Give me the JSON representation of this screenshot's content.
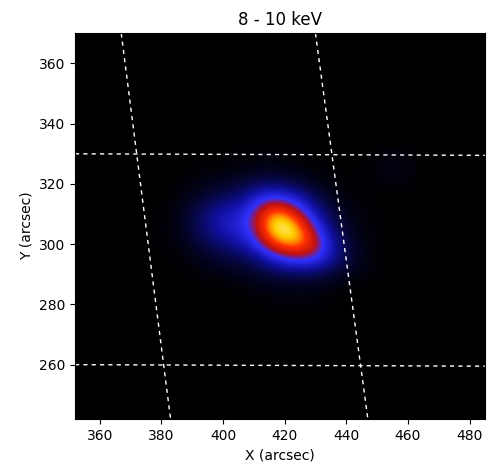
{
  "chart_data": {
    "type": "heatmap",
    "title": "8 - 10 keV",
    "x_label": "X (arcsec)",
    "y_label": "Y (arcsec)",
    "xlim": [
      352,
      485
    ],
    "ylim": [
      242,
      370
    ],
    "xticks": [
      360,
      380,
      400,
      420,
      440,
      460,
      480
    ],
    "yticks": [
      260,
      280,
      300,
      320,
      340,
      360
    ],
    "cell_x": [
      380,
      385,
      390,
      395,
      400,
      405,
      410,
      415,
      420,
      425,
      430,
      435,
      440,
      445,
      450,
      455,
      460
    ],
    "cell_y": [
      280,
      285,
      290,
      295,
      300,
      305,
      310,
      315,
      320,
      325,
      330
    ],
    "cells": [
      [
        0,
        0,
        0,
        0,
        0,
        0,
        0,
        0.01,
        0.01,
        0.01,
        0.01,
        0,
        0,
        0,
        0,
        0,
        0
      ],
      [
        0,
        0,
        0,
        0,
        0,
        0.01,
        0.02,
        0.03,
        0.03,
        0.03,
        0.03,
        0.02,
        0.01,
        0,
        0,
        0,
        0
      ],
      [
        0,
        0,
        0.01,
        0.02,
        0.03,
        0.04,
        0.06,
        0.08,
        0.1,
        0.11,
        0.1,
        0.07,
        0.04,
        0.02,
        0.01,
        0,
        0
      ],
      [
        0,
        0.01,
        0.03,
        0.05,
        0.08,
        0.1,
        0.15,
        0.3,
        0.45,
        0.5,
        0.45,
        0.25,
        0.1,
        0.04,
        0.01,
        0,
        0
      ],
      [
        0.01,
        0.02,
        0.06,
        0.12,
        0.18,
        0.25,
        0.4,
        0.7,
        0.85,
        0.85,
        0.65,
        0.3,
        0.1,
        0.03,
        0.01,
        0,
        0
      ],
      [
        0.01,
        0.03,
        0.1,
        0.2,
        0.32,
        0.38,
        0.55,
        0.9,
        1.0,
        0.85,
        0.5,
        0.18,
        0.06,
        0.02,
        0.01,
        0,
        0
      ],
      [
        0.01,
        0.03,
        0.1,
        0.2,
        0.3,
        0.35,
        0.55,
        0.85,
        0.85,
        0.6,
        0.3,
        0.1,
        0.04,
        0.02,
        0.01,
        0,
        0
      ],
      [
        0,
        0.02,
        0.05,
        0.1,
        0.15,
        0.2,
        0.35,
        0.5,
        0.45,
        0.3,
        0.12,
        0.05,
        0.02,
        0.01,
        0,
        0,
        0
      ],
      [
        0,
        0.01,
        0.02,
        0.04,
        0.06,
        0.08,
        0.12,
        0.15,
        0.12,
        0.08,
        0.04,
        0.02,
        0.01,
        0.01,
        0.01,
        0.02,
        0.01
      ],
      [
        0,
        0,
        0.01,
        0.01,
        0.02,
        0.02,
        0.03,
        0.04,
        0.03,
        0.02,
        0.01,
        0.01,
        0,
        0.01,
        0.02,
        0.04,
        0.02
      ],
      [
        0,
        0,
        0,
        0,
        0,
        0.01,
        0.01,
        0.01,
        0.01,
        0.01,
        0,
        0,
        0,
        0,
        0.01,
        0.02,
        0.01
      ]
    ],
    "heliographic_grid": [
      [
        [
          367,
          370
        ],
        [
          383,
          242
        ]
      ],
      [
        [
          430,
          370
        ],
        [
          447,
          242
        ]
      ],
      [
        [
          352,
          330
        ],
        [
          485,
          329.5
        ]
      ],
      [
        [
          352,
          260
        ],
        [
          485,
          259.5
        ]
      ]
    ]
  }
}
